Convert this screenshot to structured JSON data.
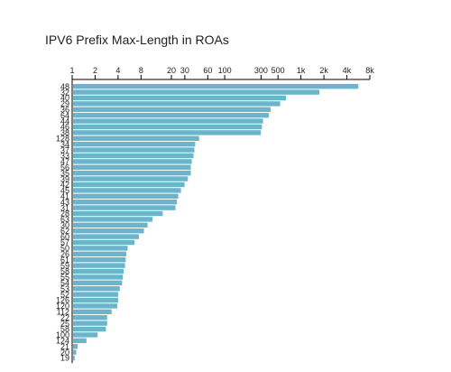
{
  "chart_data": {
    "type": "bar",
    "orientation": "horizontal",
    "title": "IPV6 Prefix Max-Length in ROAs",
    "xlabel": "",
    "ylabel": "",
    "x_scale": "log",
    "x_ticks": [
      "1",
      "2",
      "4",
      "8",
      "20",
      "30",
      "60",
      "100",
      "300",
      "500",
      "1k",
      "2k",
      "4k",
      "8k"
    ],
    "x_tick_values": [
      1,
      2,
      4,
      8,
      20,
      30,
      60,
      100,
      300,
      500,
      1000,
      2000,
      4000,
      8000
    ],
    "xlim": [
      1,
      8000
    ],
    "grid": false,
    "categories": [
      "48",
      "32",
      "40",
      "29",
      "36",
      "64",
      "44",
      "46",
      "38",
      "128",
      "34",
      "37",
      "33",
      "47",
      "56",
      "35",
      "39",
      "42",
      "45",
      "41",
      "43",
      "31",
      "28",
      "63",
      "30",
      "62",
      "60",
      "57",
      "50",
      "26",
      "61",
      "59",
      "58",
      "55",
      "54",
      "53",
      "52",
      "126",
      "120",
      "112",
      "22",
      "25",
      "58",
      "100",
      "124",
      "21",
      "20",
      "19"
    ],
    "values": [
      5500,
      1700,
      620,
      520,
      390,
      370,
      310,
      300,
      290,
      45,
      40,
      39,
      38,
      36,
      35,
      35,
      32,
      29,
      26,
      24,
      23,
      22,
      15,
      11,
      9.5,
      8.5,
      7.3,
      6.4,
      5.2,
      5.0,
      4.9,
      4.8,
      4.6,
      4.5,
      4.4,
      4.1,
      3.9,
      3.9,
      3.8,
      3.2,
      2.8,
      2.8,
      2.7,
      2.1,
      1.5,
      1.15,
      1.1,
      1.05
    ]
  }
}
